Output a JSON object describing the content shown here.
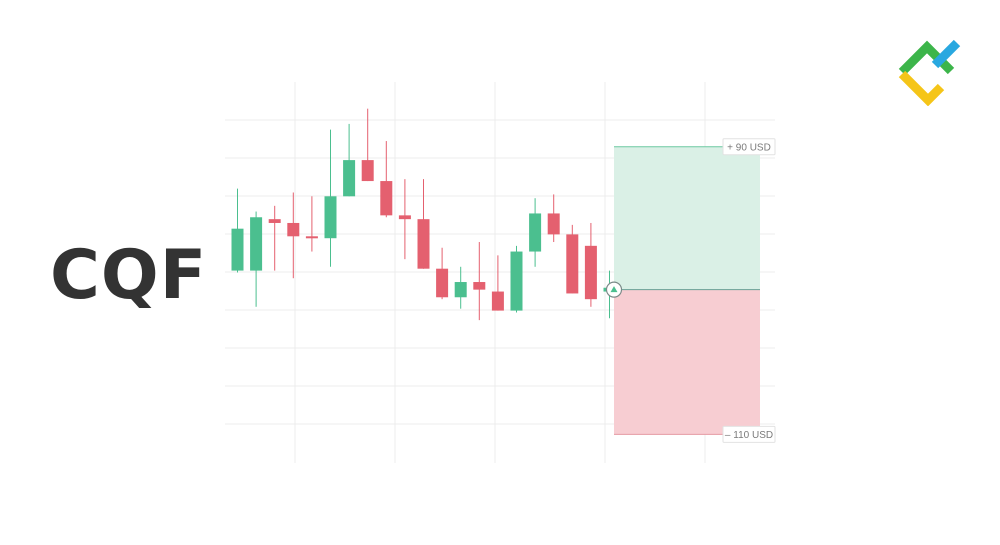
{
  "title": "CQF",
  "colors": {
    "bullish": "#4bbf8f",
    "bearish": "#e4606f",
    "profit_zone": "#daf0e6",
    "loss_zone": "#f7cdd2",
    "grid": "#ececec",
    "title_text": "#333333",
    "logo_green": "#3cb54a",
    "logo_blue": "#29a8e0",
    "logo_yellow": "#f5c518"
  },
  "logo": {
    "icon": "litefinance-logo"
  },
  "chart_data": {
    "type": "candlestick",
    "title": "",
    "xlabel": "",
    "ylabel": "",
    "ylim": [
      0,
      100
    ],
    "grid": true,
    "candles": [
      {
        "open": 50.5,
        "close": 61.5,
        "high": 72.0,
        "low": 50.0
      },
      {
        "open": 50.5,
        "close": 64.5,
        "high": 66.0,
        "low": 41.0
      },
      {
        "open": 64.0,
        "close": 63.0,
        "high": 67.5,
        "low": 50.5
      },
      {
        "open": 63.0,
        "close": 59.5,
        "high": 71.0,
        "low": 48.5
      },
      {
        "open": 59.5,
        "close": 59.0,
        "high": 70.0,
        "low": 55.5
      },
      {
        "open": 59.0,
        "close": 70.0,
        "high": 87.5,
        "low": 51.5
      },
      {
        "open": 70.0,
        "close": 79.5,
        "high": 89.0,
        "low": 70.0
      },
      {
        "open": 79.5,
        "close": 74.0,
        "high": 93.0,
        "low": 74.0
      },
      {
        "open": 74.0,
        "close": 65.0,
        "high": 84.5,
        "low": 64.5
      },
      {
        "open": 65.0,
        "close": 64.0,
        "high": 74.5,
        "low": 53.5
      },
      {
        "open": 64.0,
        "close": 51.0,
        "high": 74.5,
        "low": 51.0
      },
      {
        "open": 51.0,
        "close": 43.5,
        "high": 56.5,
        "low": 43.0
      },
      {
        "open": 43.5,
        "close": 47.5,
        "high": 51.5,
        "low": 40.5
      },
      {
        "open": 47.5,
        "close": 45.5,
        "high": 58.0,
        "low": 37.5
      },
      {
        "open": 45.0,
        "close": 40.0,
        "high": 54.5,
        "low": 40.0
      },
      {
        "open": 40.0,
        "close": 55.5,
        "high": 57.0,
        "low": 39.5
      },
      {
        "open": 55.5,
        "close": 65.5,
        "high": 69.5,
        "low": 51.5
      },
      {
        "open": 65.5,
        "close": 60.0,
        "high": 70.5,
        "low": 58.0
      },
      {
        "open": 60.0,
        "close": 44.5,
        "high": 62.5,
        "low": 44.5
      },
      {
        "open": 57.0,
        "close": 43.0,
        "high": 63.0,
        "low": 41.0
      },
      {
        "open": 45.0,
        "close": 46.0,
        "high": 50.5,
        "low": 38.0
      }
    ],
    "entry": {
      "value": 45.5,
      "icon": "buy-arrow-icon"
    },
    "take_profit": {
      "value": 83.0,
      "label": "+ 90 USD"
    },
    "stop_loss": {
      "value": 7.5,
      "label": "– 110 USD"
    }
  }
}
